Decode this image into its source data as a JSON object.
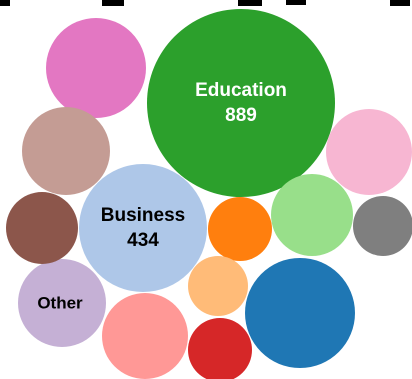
{
  "chart_data": {
    "type": "bubble-pack",
    "title_fragment": "",
    "bubbles": [
      {
        "label": "Education",
        "value": 889,
        "color": "#2ca02c",
        "label_color": "#ffffff"
      },
      {
        "label": "Business",
        "value": 434,
        "color": "#aec7e8",
        "label_color": "#000000"
      },
      {
        "label": "Other",
        "value": null,
        "color": "#c5b0d5",
        "label_color": "#000000"
      },
      {
        "label": "",
        "value": null,
        "color": "#1f77b4"
      },
      {
        "label": "",
        "value": null,
        "color": "#e377c2"
      },
      {
        "label": "",
        "value": null,
        "color": "#c49c94"
      },
      {
        "label": "",
        "value": null,
        "color": "#f7b6d2"
      },
      {
        "label": "",
        "value": null,
        "color": "#98df8a"
      },
      {
        "label": "",
        "value": null,
        "color": "#ff9896"
      },
      {
        "label": "",
        "value": null,
        "color": "#8c564b"
      },
      {
        "label": "",
        "value": null,
        "color": "#ff7f0e"
      },
      {
        "label": "",
        "value": null,
        "color": "#ffbb78"
      },
      {
        "label": "",
        "value": null,
        "color": "#7f7f7f"
      },
      {
        "label": "",
        "value": null,
        "color": "#d62728"
      }
    ]
  }
}
